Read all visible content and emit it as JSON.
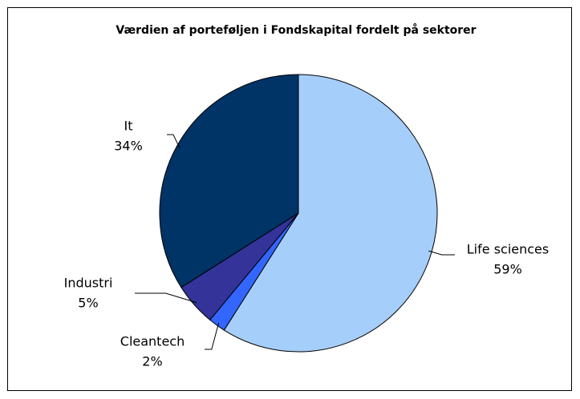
{
  "chart_data": {
    "type": "pie",
    "title": "Værdien af porteføljen i Fondskapital fordelt på sektorer",
    "categories": [
      "Life sciences",
      "Cleantech",
      "Industri",
      "It"
    ],
    "values": [
      59,
      2,
      5,
      34
    ],
    "value_labels": [
      "59%",
      "2%",
      "5%",
      "34%"
    ],
    "colors": [
      "#a6cefa",
      "#3366ff",
      "#333399",
      "#003366"
    ]
  }
}
